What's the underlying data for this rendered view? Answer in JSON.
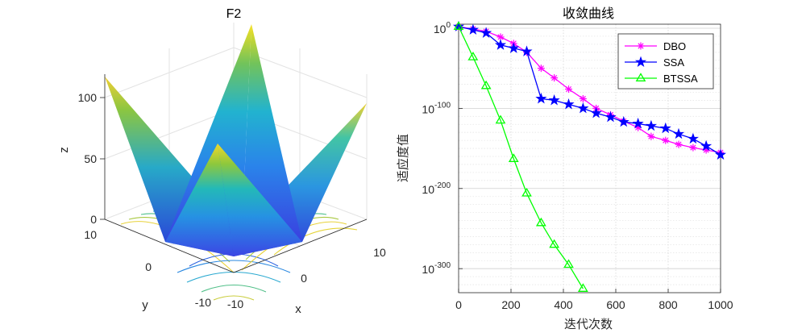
{
  "chart_data": [
    {
      "type": "surface",
      "title": "F2",
      "xlabel": "x",
      "ylabel": "y",
      "zlabel": "z",
      "x_ticks": [
        "-10",
        "0",
        "10"
      ],
      "y_ticks": [
        "-10",
        "0",
        "10"
      ],
      "z_ticks": [
        "0",
        "50",
        "100"
      ],
      "xlim": [
        -10,
        10
      ],
      "ylim": [
        -10,
        10
      ],
      "zlim": [
        0,
        120
      ],
      "function": "sum(|x_i|) + prod(|x_i|)",
      "colormap": "parula",
      "contour_projection": true
    },
    {
      "type": "line",
      "title": "收敛曲线",
      "xlabel": "迭代次数",
      "ylabel": "适应度值",
      "yscale": "log",
      "xlim": [
        0,
        1000
      ],
      "ylim_exponent": [
        -330,
        5
      ],
      "x_ticks": [
        "0",
        "200",
        "400",
        "600",
        "800",
        "1000"
      ],
      "y_ticks": [
        {
          "base": "10",
          "exp": "0",
          "value": 0
        },
        {
          "base": "10",
          "exp": "-100",
          "value": -100
        },
        {
          "base": "10",
          "exp": "-200",
          "value": -200
        },
        {
          "base": "10",
          "exp": "-300",
          "value": -300
        }
      ],
      "grid": true,
      "legend_position": "top-right",
      "series": [
        {
          "name": "DBO",
          "color": "#ff00ff",
          "marker": "asterisk",
          "x": [
            0,
            55,
            105,
            160,
            210,
            260,
            315,
            365,
            420,
            475,
            525,
            580,
            630,
            685,
            735,
            790,
            840,
            895,
            945,
            1000
          ],
          "log10_y": [
            2,
            -1,
            -4,
            -11,
            -19,
            -30,
            -50,
            -62,
            -76,
            -88,
            -100,
            -108,
            -116,
            -124,
            -135,
            -140,
            -145,
            -149,
            -152,
            -155
          ]
        },
        {
          "name": "SSA",
          "color": "#0000ff",
          "marker": "pentagram",
          "x": [
            0,
            55,
            105,
            160,
            210,
            260,
            315,
            365,
            420,
            475,
            525,
            580,
            630,
            685,
            735,
            790,
            840,
            895,
            945,
            1000
          ],
          "log10_y": [
            2,
            -2,
            -6,
            -21,
            -25,
            -29,
            -88,
            -90,
            -95,
            -100,
            -106,
            -111,
            -117,
            -119,
            -122,
            -125,
            -132,
            -138,
            -147,
            -158
          ]
        },
        {
          "name": "BTSSA",
          "color": "#00ff00",
          "marker": "triangle",
          "x": [
            0,
            55,
            105,
            160,
            210,
            260,
            315,
            365,
            420,
            475
          ],
          "log10_y": [
            2,
            -36,
            -72,
            -115,
            -163,
            -206,
            -243,
            -270,
            -295,
            -325
          ]
        }
      ]
    }
  ]
}
